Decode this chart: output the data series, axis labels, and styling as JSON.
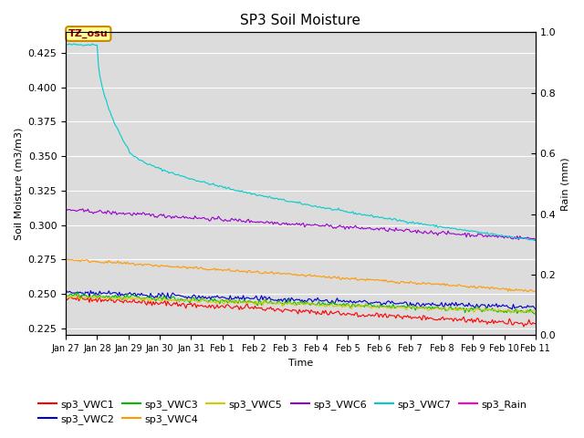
{
  "title": "SP3 Soil Moisture",
  "xlabel": "Time",
  "ylabel_left": "Soil Moisture (m3/m3)",
  "ylabel_right": "Rain (mm)",
  "ylim_left": [
    0.22,
    0.44
  ],
  "ylim_right": [
    0.0,
    1.0
  ],
  "bg_color": "#dcdcdc",
  "fig_color": "#ffffff",
  "xtick_labels": [
    "Jan 27",
    "Jan 28",
    "Jan 29",
    "Jan 30",
    "Jan 31",
    "Feb 1",
    "Feb 2",
    "Feb 3",
    "Feb 4",
    "Feb 5",
    "Feb 6",
    "Feb 7",
    "Feb 8",
    "Feb 9",
    "Feb 10",
    "Feb 11"
  ],
  "annotation_text": "TZ_osu",
  "series_colors": {
    "sp3_VWC1": "#ff0000",
    "sp3_VWC2": "#0000cc",
    "sp3_VWC3": "#00bb00",
    "sp3_VWC4": "#ff9900",
    "sp3_VWC5": "#cccc00",
    "sp3_VWC6": "#9900cc",
    "sp3_VWC7": "#00cccc",
    "sp3_Rain": "#ff00cc"
  }
}
